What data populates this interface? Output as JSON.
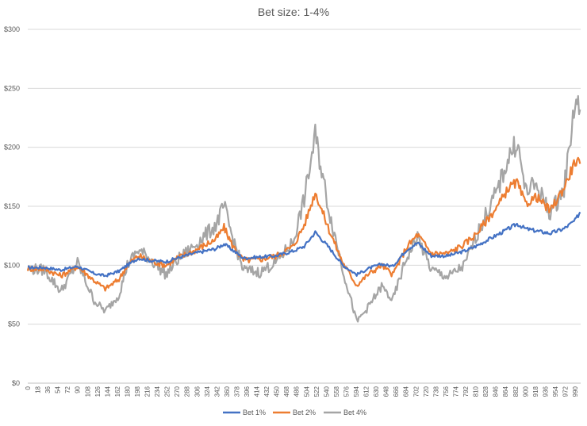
{
  "chart_data": {
    "type": "line",
    "title": "Bet size: 1-4%",
    "xlabel": "",
    "ylabel": "",
    "ylim": [
      0,
      300
    ],
    "xlim": [
      0,
      1000
    ],
    "grid": true,
    "legend_position": "bottom",
    "y_tick_labels": [
      "$0",
      "$50",
      "$100",
      "$150",
      "$200",
      "$250",
      "$300"
    ],
    "y_tick_values": [
      0,
      50,
      100,
      150,
      200,
      250,
      300
    ],
    "x_tick_labels": [
      "0",
      "18",
      "36",
      "54",
      "72",
      "90",
      "108",
      "126",
      "144",
      "162",
      "180",
      "198",
      "216",
      "234",
      "252",
      "270",
      "288",
      "306",
      "324",
      "342",
      "360",
      "378",
      "396",
      "414",
      "432",
      "450",
      "468",
      "486",
      "504",
      "522",
      "540",
      "558",
      "576",
      "594",
      "612",
      "630",
      "648",
      "666",
      "684",
      "702",
      "720",
      "738",
      "756",
      "774",
      "792",
      "810",
      "828",
      "846",
      "864",
      "882",
      "900",
      "918",
      "936",
      "954",
      "972",
      "990"
    ],
    "series": [
      {
        "name": "Bet 1%",
        "color": "#4472c4",
        "x": [
          0,
          30,
          60,
          90,
          120,
          140,
          165,
          180,
          200,
          220,
          250,
          270,
          300,
          320,
          340,
          355,
          370,
          390,
          420,
          450,
          480,
          500,
          520,
          545,
          570,
          595,
          615,
          640,
          660,
          685,
          705,
          730,
          760,
          790,
          810,
          830,
          850,
          870,
          885,
          900,
          920,
          945,
          970,
          990,
          999
        ],
        "y": [
          98,
          98,
          96,
          99,
          93,
          91,
          95,
          100,
          106,
          104,
          103,
          106,
          110,
          112,
          114,
          118,
          113,
          106,
          107,
          108,
          112,
          116,
          128,
          115,
          100,
          92,
          97,
          101,
          99,
          113,
          119,
          108,
          108,
          112,
          116,
          121,
          126,
          131,
          135,
          131,
          129,
          127,
          131,
          138,
          145
        ]
      },
      {
        "name": "Bet 2%",
        "color": "#ed7d31",
        "x": [
          0,
          30,
          60,
          90,
          120,
          140,
          165,
          180,
          200,
          220,
          250,
          270,
          300,
          320,
          340,
          355,
          370,
          390,
          420,
          450,
          480,
          500,
          520,
          545,
          570,
          595,
          615,
          640,
          660,
          685,
          705,
          730,
          760,
          790,
          810,
          830,
          850,
          870,
          885,
          900,
          920,
          945,
          970,
          990,
          999
        ],
        "y": [
          97,
          97,
          91,
          99,
          87,
          80,
          88,
          100,
          108,
          104,
          100,
          106,
          112,
          117,
          122,
          132,
          117,
          104,
          105,
          108,
          116,
          134,
          162,
          130,
          102,
          83,
          92,
          100,
          92,
          115,
          126,
          110,
          110,
          118,
          126,
          138,
          150,
          166,
          170,
          152,
          158,
          146,
          166,
          188,
          186
        ]
      },
      {
        "name": "Bet 4%",
        "color": "#a5a5a5",
        "x": [
          0,
          30,
          60,
          90,
          120,
          140,
          165,
          180,
          200,
          220,
          250,
          270,
          300,
          320,
          340,
          355,
          370,
          390,
          420,
          450,
          480,
          500,
          520,
          545,
          570,
          595,
          615,
          640,
          660,
          685,
          705,
          730,
          760,
          790,
          810,
          830,
          850,
          870,
          885,
          900,
          920,
          945,
          970,
          990,
          999
        ],
        "y": [
          97,
          96,
          78,
          102,
          70,
          61,
          75,
          100,
          113,
          106,
          92,
          104,
          116,
          125,
          134,
          150,
          124,
          96,
          94,
          103,
          120,
          156,
          210,
          146,
          96,
          52,
          64,
          82,
          70,
          106,
          124,
          96,
          90,
          100,
          124,
          144,
          164,
          192,
          205,
          163,
          168,
          144,
          165,
          240,
          232
        ]
      }
    ]
  }
}
